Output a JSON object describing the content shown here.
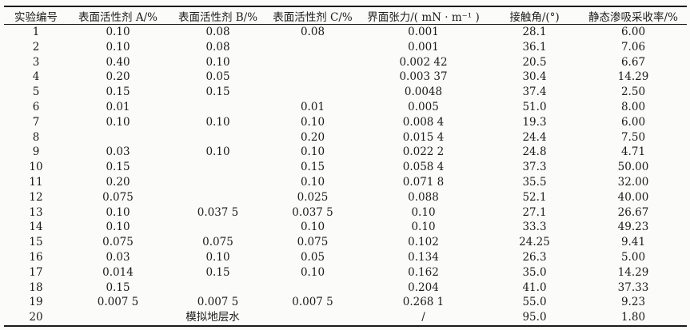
{
  "page": {
    "background": "#fbfbfa",
    "text_color": "#1b1b1b",
    "rule_color": "#1a1a1a"
  },
  "table": {
    "columns": [
      "实验编号",
      "表面活性剂 A/%",
      "表面活性剂 B/%",
      "表面活性剂 C/%",
      "界面张力/( mN · m⁻¹ )",
      "接触角/(°)",
      "静态渗吸采收率/%"
    ],
    "rows": [
      {
        "cells": [
          "1",
          "0.10",
          "0.08",
          "0.08",
          "0.001",
          "28.1",
          "6.00"
        ]
      },
      {
        "cells": [
          "2",
          "0.10",
          "0.08",
          "",
          "0.001",
          "36.1",
          "7.06"
        ]
      },
      {
        "cells": [
          "3",
          "0.40",
          "0.10",
          "",
          "0.002 42",
          "20.5",
          "6.67"
        ]
      },
      {
        "cells": [
          "4",
          "0.20",
          "0.05",
          "",
          "0.003 37",
          "30.4",
          "14.29"
        ]
      },
      {
        "cells": [
          "5",
          "0.15",
          "0.15",
          "",
          "0.0048",
          "37.4",
          "2.50"
        ]
      },
      {
        "cells": [
          "6",
          "0.01",
          "",
          "0.01",
          "0.005",
          "51.0",
          "8.00"
        ]
      },
      {
        "cells": [
          "7",
          "0.10",
          "0.10",
          "0.10",
          "0.008 4",
          "19.3",
          "6.00"
        ]
      },
      {
        "cells": [
          "8",
          "",
          "",
          "0.20",
          "0.015 4",
          "24.4",
          "7.50"
        ]
      },
      {
        "cells": [
          "9",
          "0.03",
          "0.10",
          "0.10",
          "0.022 2",
          "24.8",
          "4.71"
        ]
      },
      {
        "cells": [
          "10",
          "0.15",
          "",
          "0.15",
          "0.058 4",
          "37.3",
          "50.00"
        ]
      },
      {
        "cells": [
          "11",
          "0.20",
          "",
          "0.10",
          "0.071 8",
          "35.5",
          "32.00"
        ]
      },
      {
        "cells": [
          "12",
          "0.075",
          "",
          "0.025",
          "0.088",
          "52.1",
          "40.00"
        ]
      },
      {
        "cells": [
          "13",
          "0.10",
          "0.037 5",
          "0.037 5",
          "0.10",
          "27.1",
          "26.67"
        ]
      },
      {
        "cells": [
          "14",
          "0.10",
          "",
          "0.10",
          "0.10",
          "33.3",
          "49.23"
        ]
      },
      {
        "cells": [
          "15",
          "0.075",
          "0.075",
          "0.075",
          "0.102",
          "24.25",
          "9.41"
        ]
      },
      {
        "cells": [
          "16",
          "0.03",
          "0.10",
          "0.05",
          "0.134",
          "26.3",
          "5.00"
        ]
      },
      {
        "cells": [
          "17",
          "0.014",
          "0.15",
          "0.10",
          "0.162",
          "35.0",
          "14.29"
        ]
      },
      {
        "cells": [
          "18",
          "0.15",
          "",
          "",
          "0.204",
          "41.0",
          "37.33"
        ]
      },
      {
        "cells": [
          "19",
          "0.007 5",
          "0.007 5",
          "0.007 5",
          "0.268 1",
          "55.0",
          "9.23"
        ]
      },
      {
        "cells": [
          "20",
          {
            "text": "模拟地层水",
            "colspan": 3
          },
          "/",
          "95.0",
          "1.80"
        ]
      }
    ]
  }
}
